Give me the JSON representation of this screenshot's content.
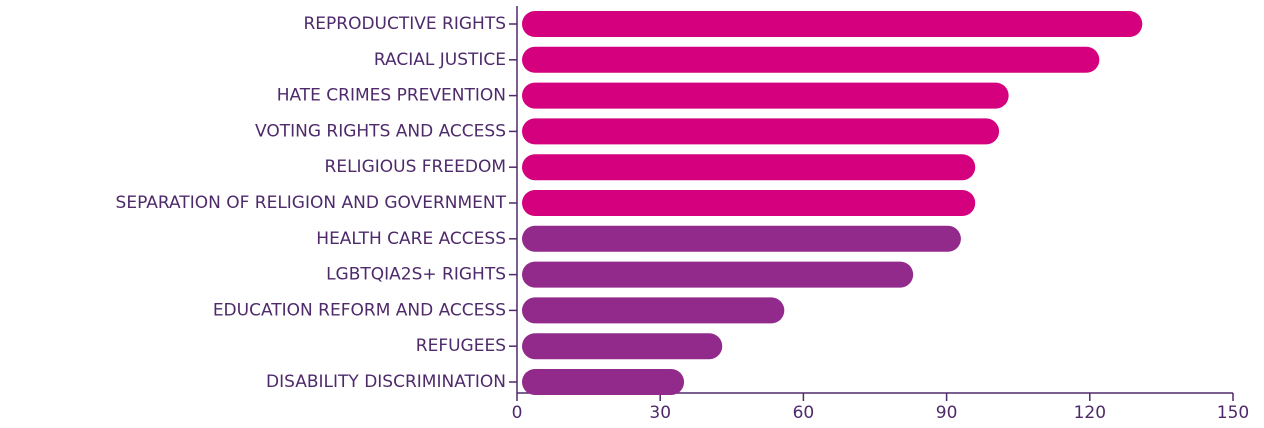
{
  "chart_data": {
    "type": "barh",
    "categories": [
      "REPRODUCTIVE RIGHTS",
      "RACIAL JUSTICE",
      "HATE CRIMES PREVENTION",
      "VOTING RIGHTS AND ACCESS",
      "RELIGIOUS FREEDOM",
      "SEPARATION OF RELIGION AND GOVERNMENT",
      "HEALTH CARE ACCESS",
      "LGBTQIA2S+ RIGHTS",
      "EDUCATION REFORM AND ACCESS",
      "REFUGEES",
      "DISABILITY DISCRIMINATION"
    ],
    "values": [
      131,
      122,
      103,
      101,
      96,
      96,
      93,
      83,
      56,
      43,
      35
    ],
    "colors": [
      "#d4007e",
      "#d4007e",
      "#d4007e",
      "#d4007e",
      "#d4007e",
      "#d4007e",
      "#922a8c",
      "#922a8c",
      "#922a8c",
      "#922a8c",
      "#922a8c"
    ],
    "xlim": [
      0,
      150
    ],
    "xticks": [
      0,
      30,
      60,
      90,
      120,
      150
    ]
  }
}
